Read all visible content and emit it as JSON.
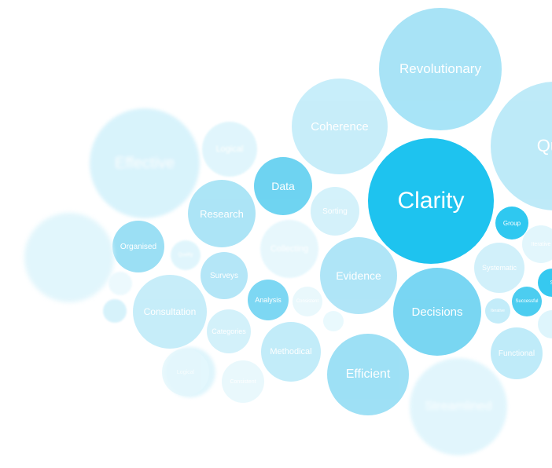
{
  "bubbles": [
    {
      "label": "Revolutionary",
      "color": "#9fe1f6",
      "opacity": 0.9
    },
    {
      "label": "Qual",
      "color": "#a8e3f6",
      "opacity": 0.75
    },
    {
      "label": "Coherence",
      "color": "#b5e8f8",
      "opacity": 0.75
    },
    {
      "label": "Effective",
      "color": "#c8eefa",
      "opacity": 0.7
    },
    {
      "label": "Logical",
      "color": "#d4f2fb",
      "opacity": 0.7
    },
    {
      "label": "Data",
      "color": "#5fcff0",
      "opacity": 0.9
    },
    {
      "label": "Clarity",
      "color": "#1ec3ef",
      "opacity": 1
    },
    {
      "label": "Research",
      "color": "#9ee0f5",
      "opacity": 0.85
    },
    {
      "label": "Sorting",
      "color": "#c6edf9",
      "opacity": 0.75
    },
    {
      "label": "Group",
      "color": "#2fc8f0",
      "opacity": 1
    },
    {
      "label": "Iterative",
      "color": "#d9f4fb",
      "opacity": 0.75
    },
    {
      "label": "Organised",
      "color": "#8adaf3",
      "opacity": 0.85
    },
    {
      "label": "Quality",
      "color": "#d4f2fb",
      "opacity": 0.7
    },
    {
      "label": "",
      "color": "#d8f3fb",
      "opacity": 0.75
    },
    {
      "label": "Collecting",
      "color": "#dff5fc",
      "opacity": 0.75
    },
    {
      "label": "Evidence",
      "color": "#a2e1f6",
      "opacity": 0.85
    },
    {
      "label": "Systematic",
      "color": "#c6edf9",
      "opacity": 0.8
    },
    {
      "label": "Surveys",
      "color": "#a7e2f6",
      "opacity": 0.85
    },
    {
      "label": "S",
      "color": "#36c9f0",
      "opacity": 1
    },
    {
      "label": "Analysis",
      "color": "#6fd3f2",
      "opacity": 0.9
    },
    {
      "label": "Decisions",
      "color": "#72d4f2",
      "opacity": 0.95
    },
    {
      "label": "Successful",
      "color": "#4ccdf0",
      "opacity": 1
    },
    {
      "label": "Iterative",
      "color": "#b9e9f8",
      "opacity": 0.85
    },
    {
      "label": "",
      "color": "#e8f8fd",
      "opacity": 0.8
    },
    {
      "label": "Consultation",
      "color": "#b9e9f8",
      "opacity": 0.8
    },
    {
      "label": "Consistent",
      "color": "#e4f7fc",
      "opacity": 0.8
    },
    {
      "label": "",
      "color": "#e4f7fc",
      "opacity": 0.8
    },
    {
      "label": "",
      "color": "#cdeffa",
      "opacity": 0.8
    },
    {
      "label": "",
      "color": "#d6f2fb",
      "opacity": 0.8
    },
    {
      "label": "Categories",
      "color": "#c9eefa",
      "opacity": 0.8
    },
    {
      "label": "Methodical",
      "color": "#b8e9f8",
      "opacity": 0.85
    },
    {
      "label": "Functional",
      "color": "#b5e8f8",
      "opacity": 0.85
    },
    {
      "label": "",
      "color": "#d2f1fb",
      "opacity": 0.7
    },
    {
      "label": "Efficient",
      "color": "#93ddf4",
      "opacity": 0.9
    },
    {
      "label": "Consistent",
      "color": "#e4f7fc",
      "opacity": 0.8
    },
    {
      "label": "Logical",
      "color": "#e4f7fc",
      "opacity": 0.8
    },
    {
      "label": "Streamlined",
      "color": "#dcf4fc",
      "opacity": 0.85
    }
  ]
}
